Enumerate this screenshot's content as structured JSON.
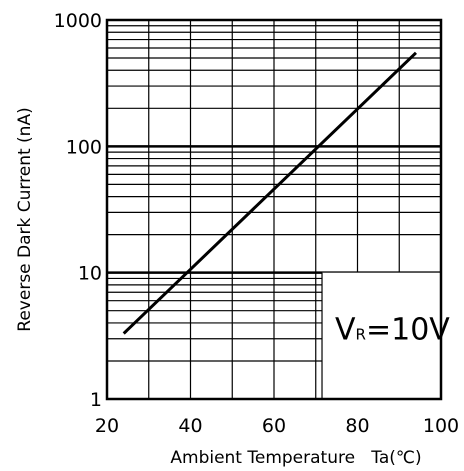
{
  "chart_data": {
    "type": "line",
    "xlabel": "Ambient Temperature   Ta(℃)",
    "ylabel": "Reverse Dark Current (nA)",
    "xlim": [
      20,
      100
    ],
    "ylim": [
      1,
      1000
    ],
    "y_scale": "log",
    "x_ticks": [
      20,
      40,
      60,
      80,
      100
    ],
    "x_tick_labels": [
      "20",
      "40",
      "60",
      "80",
      "100"
    ],
    "y_ticks": [
      1,
      10,
      100,
      1000
    ],
    "y_tick_labels": [
      "1",
      "10",
      "100",
      "1000"
    ],
    "grid": true,
    "series": [
      {
        "x": [
          24,
          94
        ],
        "y": [
          3.3,
          550
        ]
      }
    ],
    "annotation": {
      "main": "V",
      "sub": "R",
      "rest": "=10V"
    }
  }
}
